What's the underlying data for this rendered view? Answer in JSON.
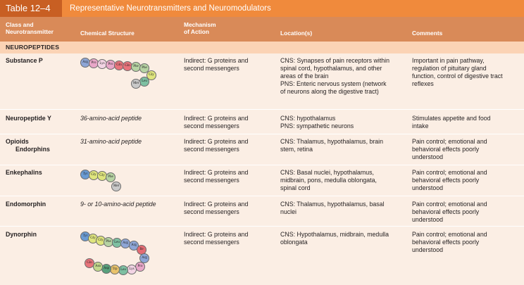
{
  "table": {
    "number": "Table 12–4",
    "title": "Representative Neurotransmitters and Neuromodulators"
  },
  "headers": {
    "class_line1": "Class and",
    "class_line2": "Neurotransmitter",
    "structure": "Chemical Structure",
    "mechanism_line1": "Mechanism",
    "mechanism_line2": "of Action",
    "location": "Location(s)",
    "comments": "Comments"
  },
  "section": "NEUROPEPTIDES",
  "rows": [
    {
      "name": "Substance P",
      "structure_text": "",
      "mechanism": [
        "Indirect: G proteins and",
        "second messengers"
      ],
      "location": [
        "CNS: Synapses of pain receptors within",
        "spinal cord, hypothalamus, and other",
        "areas of the brain",
        "PNS: Enteric nervous system (network",
        "of neurons along the digestive tract)"
      ],
      "comments": [
        "Important in pain pathway,",
        "regulation of pituitary gland",
        "function, control of digestive tract",
        "reflexes"
      ]
    },
    {
      "name": "Neuropeptide Y",
      "structure_text": "36-amino-acid peptide",
      "mechanism": [
        "Indirect: G proteins and",
        "second messengers"
      ],
      "location": [
        "CNS: hypothalamus",
        "PNS: sympathetic neurons"
      ],
      "comments": [
        "Stimulates appetite and food",
        "intake"
      ]
    },
    {
      "name": "Opioids",
      "name2": "Endorphins",
      "structure_text": "31-amino-acid peptide",
      "mechanism": [
        "Indirect: G proteins and",
        "second messengers"
      ],
      "location": [
        "CNS: Thalamus, hypothalamus, brain",
        "stem, retina"
      ],
      "comments": [
        "Pain control; emotional and",
        "behavioral effects poorly",
        "understood"
      ]
    },
    {
      "name": "Enkephalins",
      "structure_text": "",
      "mechanism": [
        "Indirect: G proteins and",
        "second messengers"
      ],
      "location": [
        "CNS: Basal nuclei, hypothalamus,",
        "midbrain, pons, medulla oblongata,",
        "spinal cord"
      ],
      "comments": [
        "Pain control; emotional and",
        "behavioral effects poorly",
        "understood"
      ]
    },
    {
      "name": "Endomorphin",
      "structure_text": "9- or 10-amino-acid peptide",
      "mechanism": [
        "Indirect: G proteins and",
        "second messengers"
      ],
      "location": [
        "CNS: Thalamus, hypothalamus, basal",
        "nuclei"
      ],
      "comments": [
        "Pain control; emotional and",
        "behavioral effects poorly",
        "understood"
      ]
    },
    {
      "name": "Dynorphin",
      "structure_text": "",
      "mechanism": [
        "Indirect: G proteins and",
        "second messengers"
      ],
      "location": [
        "CNS: Hypothalamus, midbrain, medulla",
        "oblongata"
      ],
      "comments": [
        "Pain control; emotional and",
        "behavioral effects poorly",
        "understood"
      ]
    }
  ],
  "chains": {
    "substance_p": [
      "Arg",
      "Pro",
      "Lys",
      "Pro",
      "Gln",
      "Gln",
      "Phe",
      "Phe",
      "Gly",
      "Leu",
      "Met"
    ],
    "enkephalin": [
      "Tyr",
      "Gly",
      "Gly",
      "Phe",
      "Met"
    ],
    "dynorphin": [
      "Tyr",
      "Gly",
      "Gly",
      "Phe",
      "Leu",
      "Arg",
      "Arg",
      "Ile",
      "Arg",
      "Pro",
      "Lys",
      "Leu",
      "Trp",
      "Asp",
      "Asn",
      "Gln"
    ]
  },
  "colors": {
    "title_bar": "#f08a3c",
    "table_num": "#c85f23",
    "header": "#d98a58",
    "section": "#fbd3b5",
    "body": "#fbeee4",
    "amino": {
      "Arg": "#8ea6d6",
      "Pro": "#e8a7c8",
      "Lys": "#f2d4e4",
      "Gln": "#e8747b",
      "Phe": "#b6d3a3",
      "Gly": "#dfe57e",
      "Met": "#c9c9c9",
      "Leu": "#7ec0a2",
      "Tyr": "#6a9bd3",
      "Ile": "#e46b73",
      "Trp": "#e9c36b",
      "Asp": "#58a07c",
      "Asn": "#c2d88c"
    }
  }
}
